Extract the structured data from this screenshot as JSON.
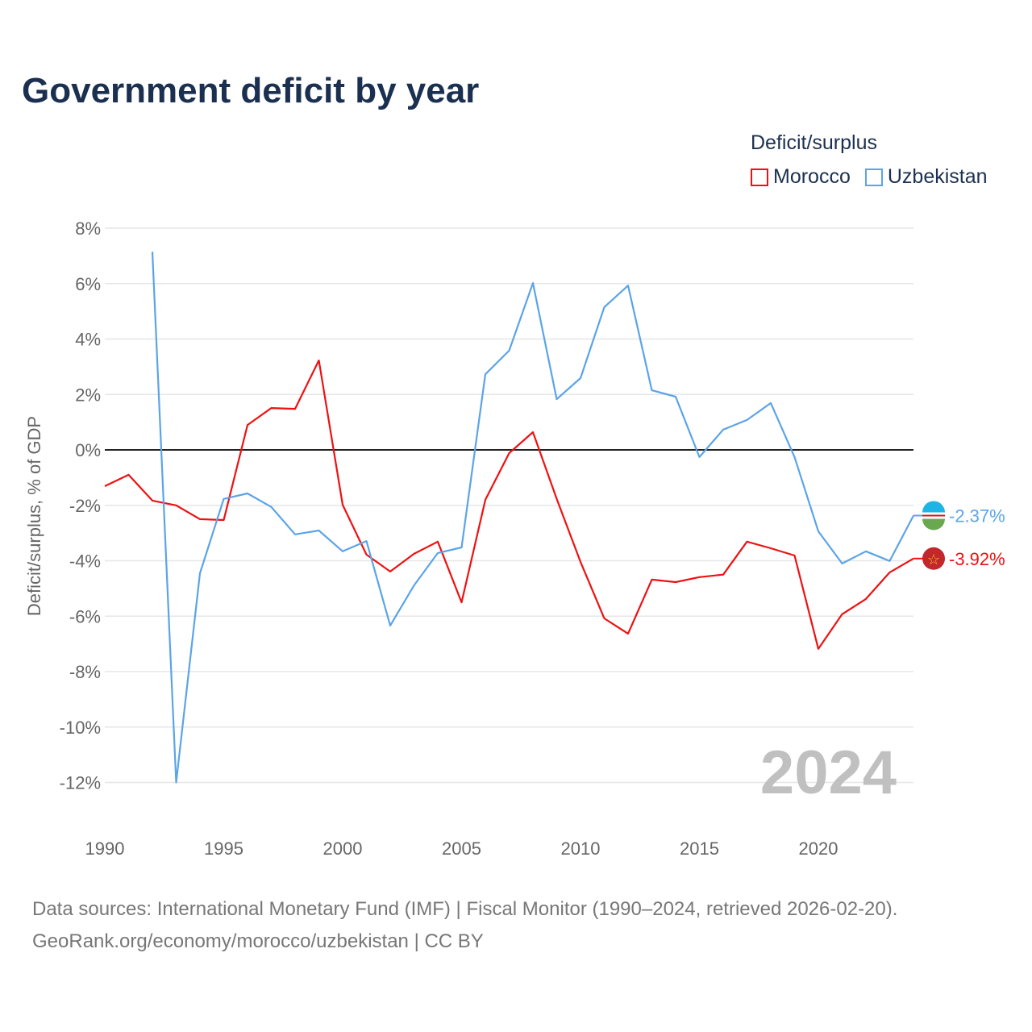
{
  "title": "Government deficit by year",
  "legend": {
    "title": "Deficit/surplus",
    "items": [
      {
        "name": "Morocco",
        "color": "#ee1111"
      },
      {
        "name": "Uzbekistan",
        "color": "#5ba4e8"
      }
    ]
  },
  "source": {
    "line1": "Data sources: International Monetary Fund (IMF) | Fiscal Monitor (1990–2024, retrieved 2026-02-20).",
    "line2": "GeoRank.org/economy/morocco/uzbekistan | CC BY"
  },
  "chart_data": {
    "type": "line",
    "title": "Government deficit by year",
    "xlabel": "",
    "ylabel": "Deficit/surplus, % of GDP",
    "xlim": [
      1990,
      2024
    ],
    "ylim": [
      -12,
      8
    ],
    "x_ticks": [
      "1990",
      "1995",
      "2000",
      "2005",
      "2010",
      "2015",
      "2020"
    ],
    "y_ticks": [
      "8%",
      "6%",
      "4%",
      "2%",
      "0%",
      "-2%",
      "-4%",
      "-6%",
      "-8%",
      "-10%",
      "-12%"
    ],
    "watermark": "2024",
    "series": [
      {
        "name": "Morocco",
        "color": "#ee1111",
        "end_label": "-3.92%",
        "start_year": 1990,
        "values": [
          -1.31,
          -0.9,
          -1.83,
          -2.0,
          -2.5,
          -2.53,
          0.9,
          1.51,
          1.48,
          3.23,
          -1.98,
          -3.78,
          -4.39,
          -3.75,
          -3.31,
          -5.5,
          -1.8,
          -0.12,
          0.64,
          -1.77,
          -4.04,
          -6.08,
          -6.63,
          -4.68,
          -4.77,
          -4.59,
          -4.5,
          -3.31,
          -3.55,
          -3.81,
          -7.18,
          -5.93,
          -5.38,
          -4.42,
          -3.92
        ]
      },
      {
        "name": "Uzbekistan",
        "color": "#5ba4e8",
        "end_label": "-2.37%",
        "start_year": 1992,
        "values": [
          7.15,
          -12.0,
          -4.45,
          -1.77,
          -1.57,
          -2.06,
          -3.05,
          -2.91,
          -3.66,
          -3.29,
          -6.34,
          -4.89,
          -3.72,
          -3.52,
          2.73,
          3.58,
          6.02,
          1.83,
          2.59,
          5.15,
          5.93,
          2.15,
          1.92,
          -0.26,
          0.73,
          1.08,
          1.69,
          -0.26,
          -2.94,
          -4.1,
          -3.66,
          -4.01,
          -2.37
        ]
      }
    ]
  }
}
